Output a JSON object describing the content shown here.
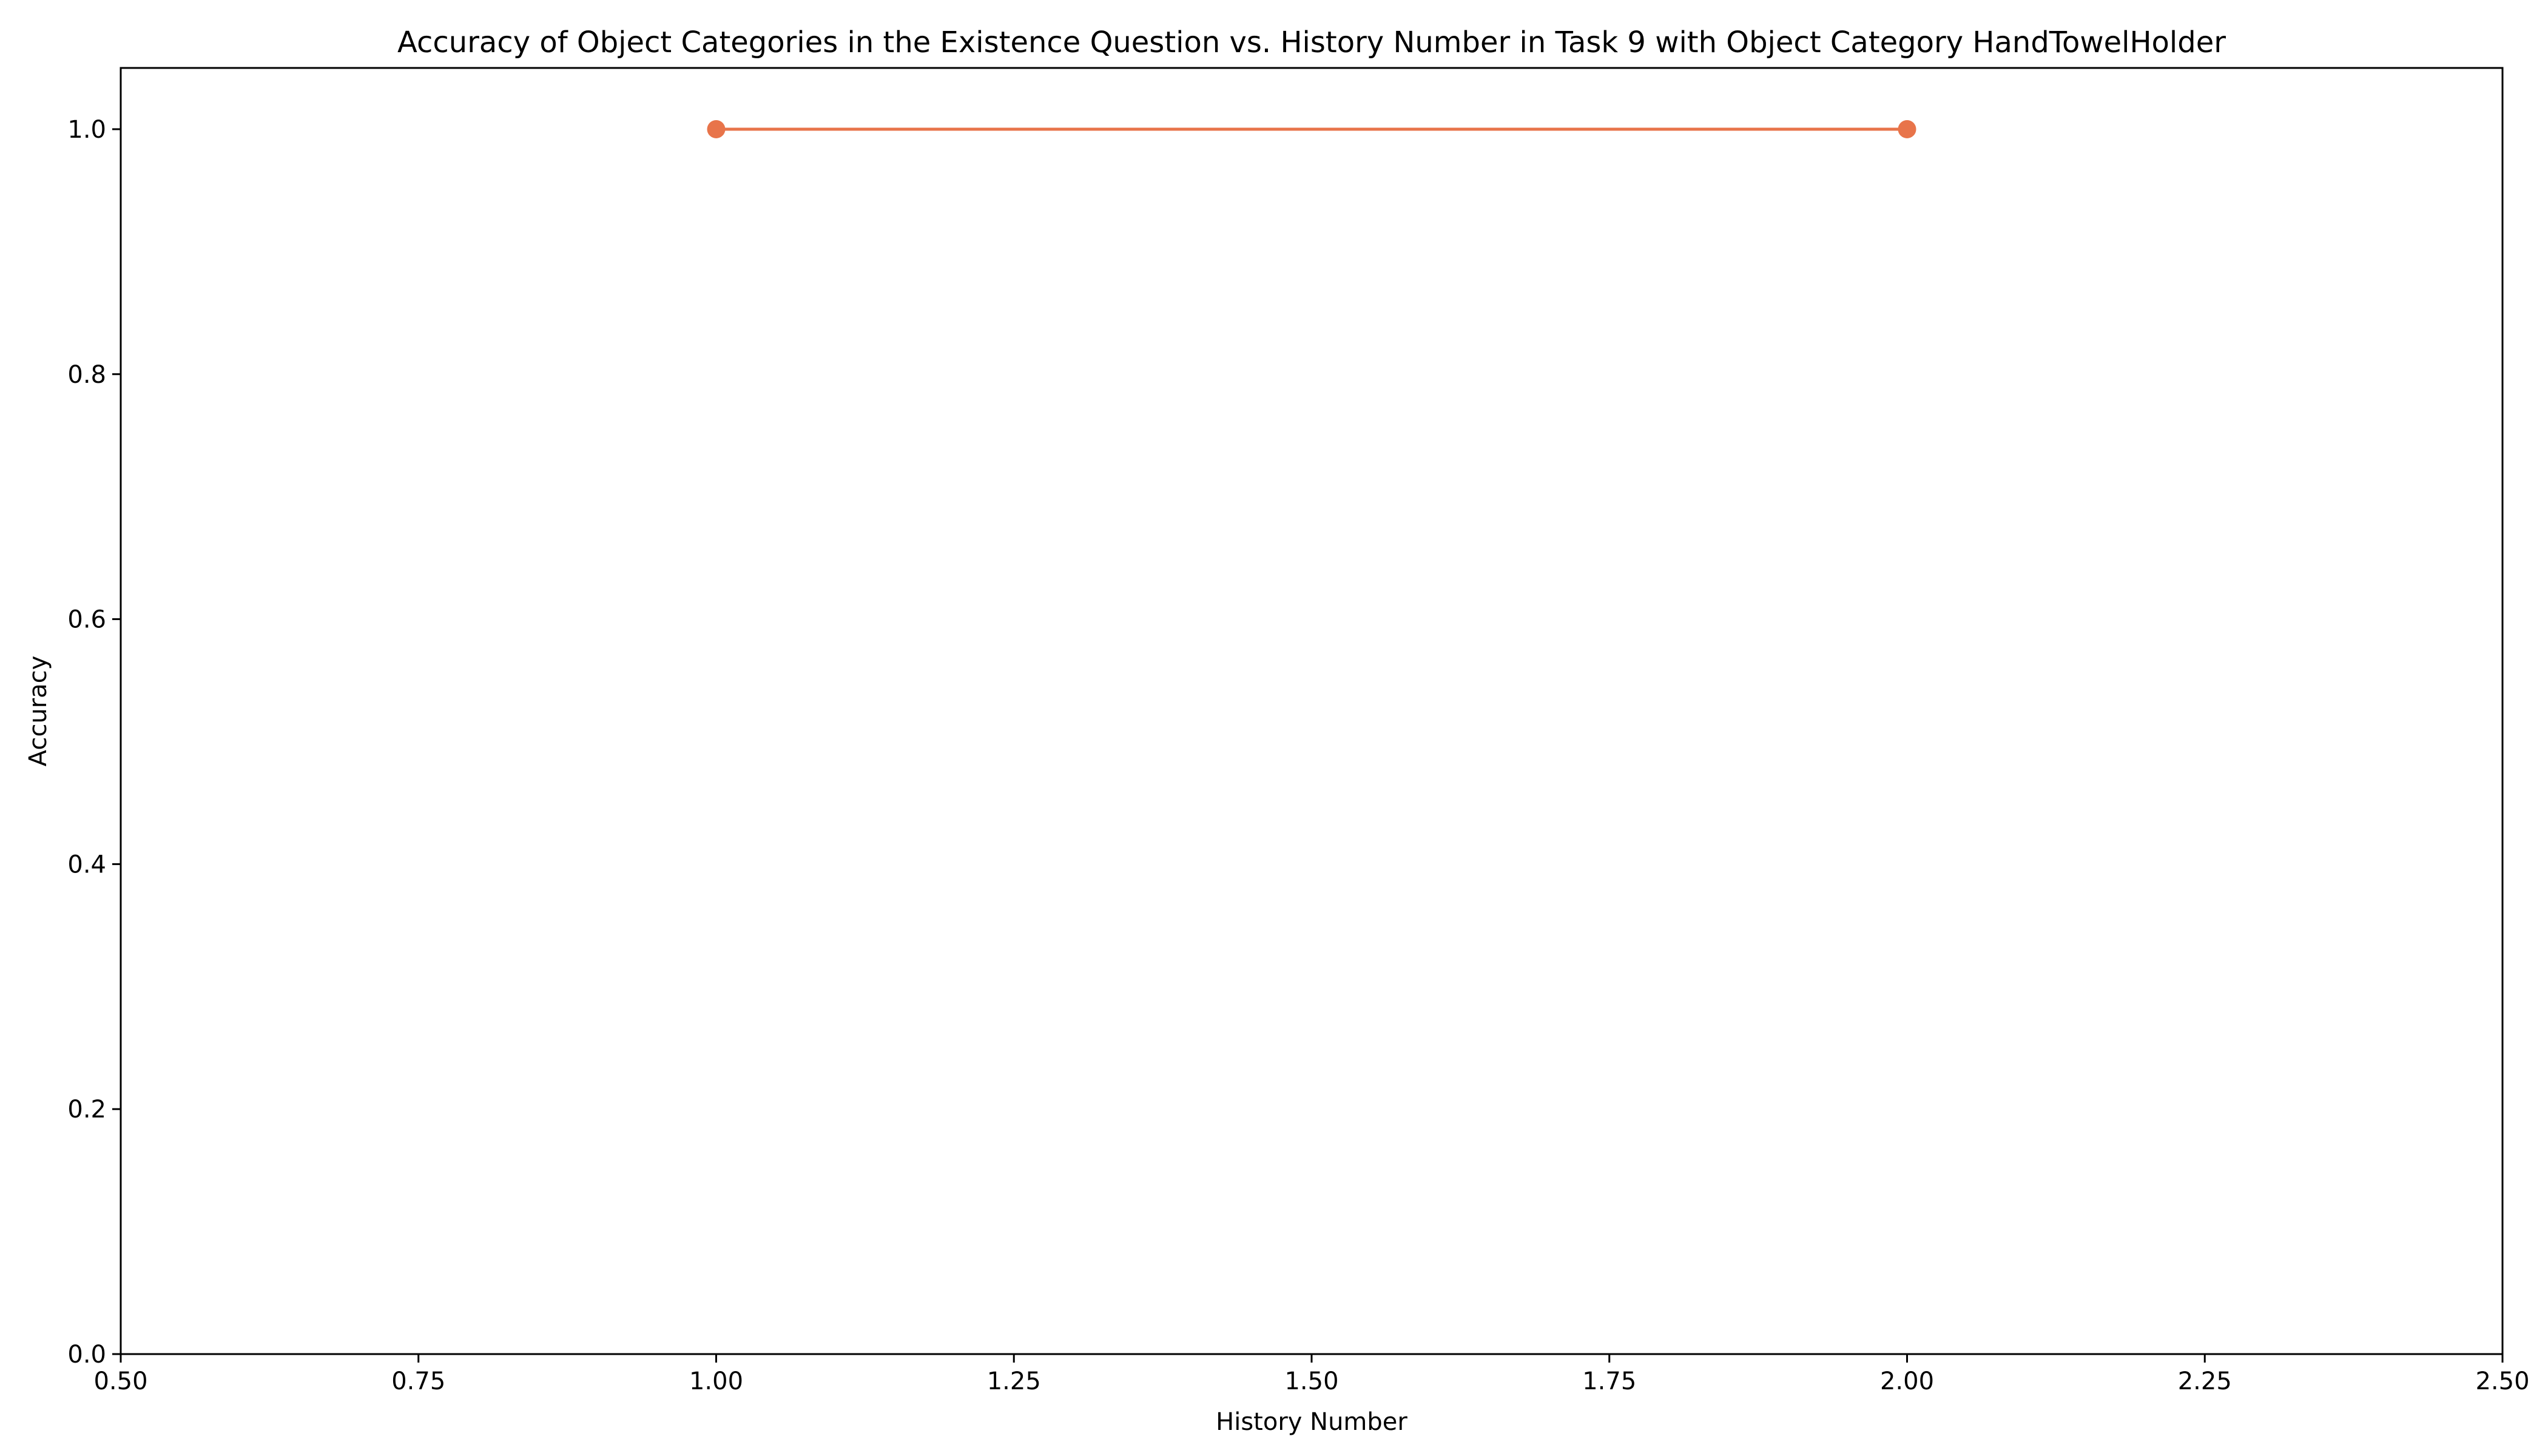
{
  "chart_data": {
    "type": "line",
    "title": "Accuracy of Object Categories in the Existence Question vs. History Number in Task 9 with Object Category HandTowelHolder",
    "xlabel": "History Number",
    "ylabel": "Accuracy",
    "xlim": [
      0.5,
      2.5
    ],
    "ylim": [
      0.0,
      1.05
    ],
    "xticks": [
      "0.50",
      "0.75",
      "1.00",
      "1.25",
      "1.50",
      "1.75",
      "2.00",
      "2.25",
      "2.50"
    ],
    "yticks": [
      "0.0",
      "0.2",
      "0.4",
      "0.6",
      "0.8",
      "1.0"
    ],
    "grid": false,
    "series": [
      {
        "x": [
          1,
          2
        ],
        "y": [
          1.0,
          1.0
        ],
        "color": "#e8744a",
        "marker": "circle"
      }
    ]
  }
}
